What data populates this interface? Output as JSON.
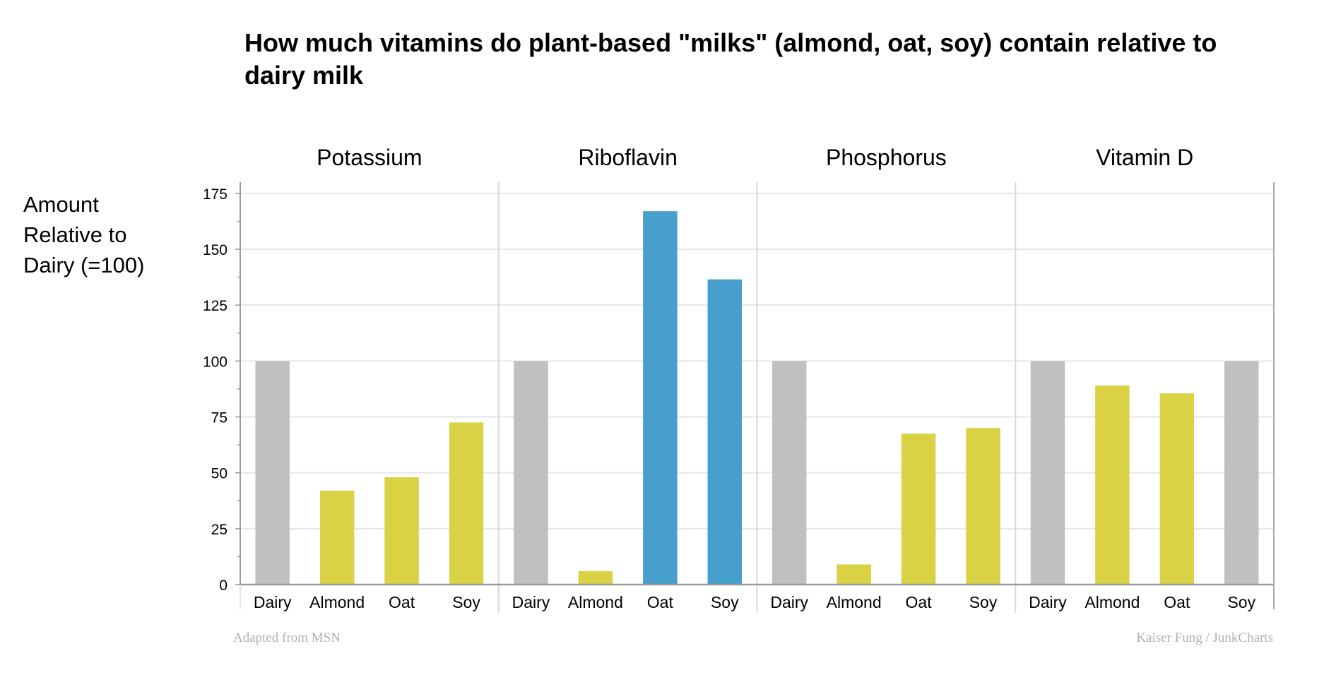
{
  "chart_data": {
    "type": "bar",
    "title": "How much vitamins do plant-based \"milks\" (almond, oat, soy) contain relative to dairy milk",
    "ylabel": "Amount\nRelative to\nDairy (=100)",
    "xlabel": "",
    "ylim": [
      0,
      180
    ],
    "yticks": [
      0,
      25,
      50,
      75,
      100,
      125,
      150,
      175
    ],
    "grid": true,
    "categories": [
      "Dairy",
      "Almond",
      "Oat",
      "Soy"
    ],
    "panels": [
      {
        "name": "Potassium",
        "values": [
          100,
          42,
          48,
          72.5
        ]
      },
      {
        "name": "Riboflavin",
        "values": [
          100,
          6,
          167,
          136.5
        ]
      },
      {
        "name": "Phosphorus",
        "values": [
          100,
          9,
          67.5,
          70
        ]
      },
      {
        "name": "Vitamin D",
        "values": [
          100,
          89,
          85.5,
          100
        ]
      }
    ],
    "colors": {
      "dairy_or_equal": "#c0c0c0",
      "below_dairy": "#d9d245",
      "above_dairy": "#479fcd"
    }
  },
  "footer": {
    "source": "Adapted from MSN",
    "credit": "Kaiser Fung / JunkCharts"
  }
}
